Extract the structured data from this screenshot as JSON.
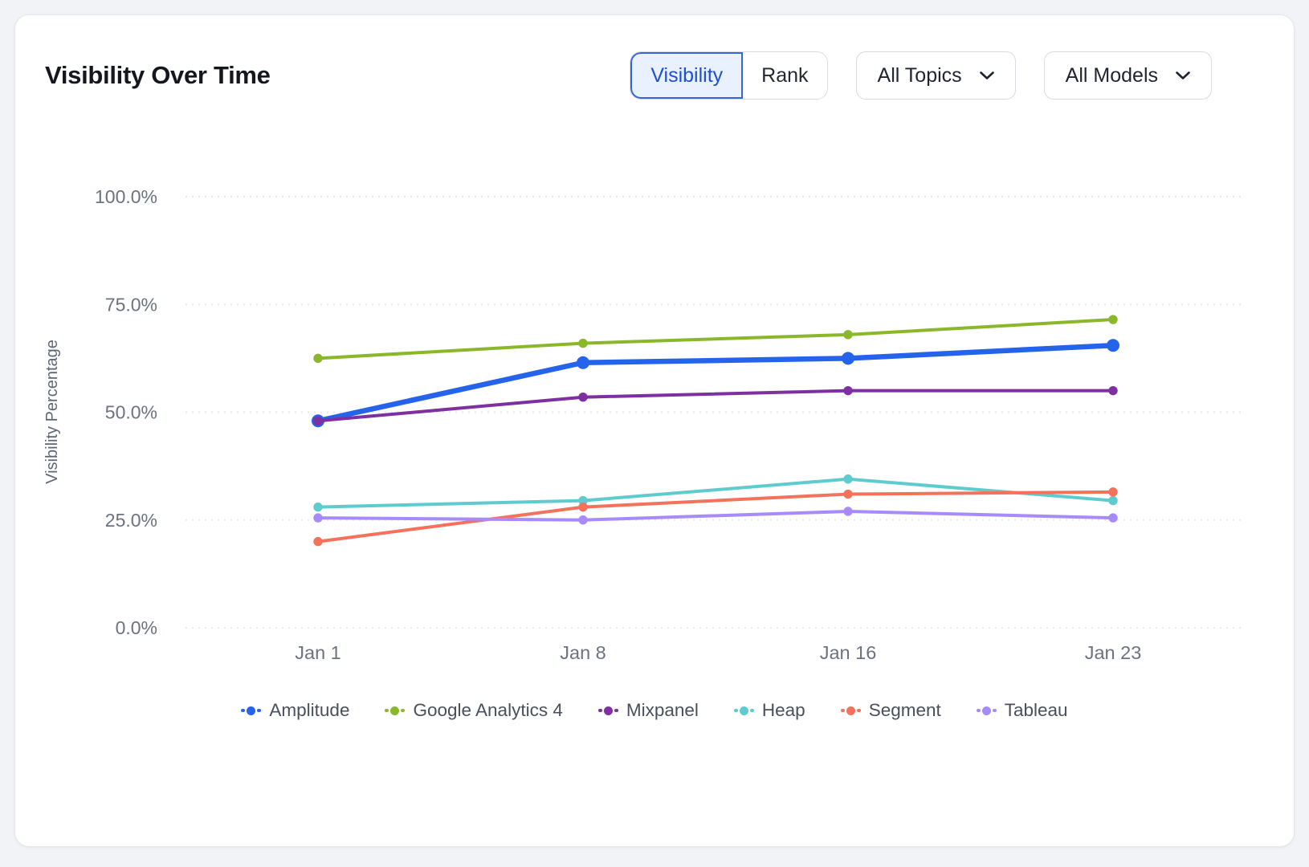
{
  "card": {
    "title": "Visibility Over Time",
    "toggle": {
      "options": [
        "Visibility",
        "Rank"
      ],
      "selected": "Visibility"
    },
    "dropdowns": [
      {
        "label": "All Topics"
      },
      {
        "label": "All Models"
      }
    ]
  },
  "colors": {
    "accent_blue": "#2563eb",
    "toggle_selected_bg": "#e9f1fe",
    "toggle_selected_border": "#3666d6",
    "grid_line": "#e7e9ee",
    "tick_text": "#6b7280",
    "axis_title_text": "#5d6774",
    "card_bg": "#ffffff",
    "page_bg": "#f1f3f6"
  },
  "chart_data": {
    "type": "line",
    "title": "Visibility Over Time",
    "xlabel": "",
    "ylabel": "Visibility Percentage",
    "categories": [
      "Jan 1",
      "Jan 8",
      "Jan 16",
      "Jan 23"
    ],
    "ylim": [
      0,
      100
    ],
    "y_ticks": [
      "100.0%",
      "75.0%",
      "50.0%",
      "25.0%",
      "0.0%"
    ],
    "grid": "horizontal-dotted",
    "legend_position": "bottom",
    "series": [
      {
        "name": "Amplitude",
        "color": "#2563eb",
        "values": [
          48,
          61.5,
          62.5,
          65.5
        ],
        "highlight": true
      },
      {
        "name": "Google Analytics 4",
        "color": "#8ab82a",
        "values": [
          62.5,
          66,
          68,
          71.5
        ]
      },
      {
        "name": "Mixpanel",
        "color": "#7e2fa0",
        "values": [
          48,
          53.5,
          55,
          55
        ]
      },
      {
        "name": "Heap",
        "color": "#5ecbce",
        "values": [
          28,
          29.5,
          34.5,
          29.5
        ]
      },
      {
        "name": "Segment",
        "color": "#f4715c",
        "values": [
          20,
          28,
          31,
          31.5
        ]
      },
      {
        "name": "Tableau",
        "color": "#a78bfa",
        "values": [
          25.5,
          25,
          27,
          25.5
        ]
      }
    ]
  }
}
